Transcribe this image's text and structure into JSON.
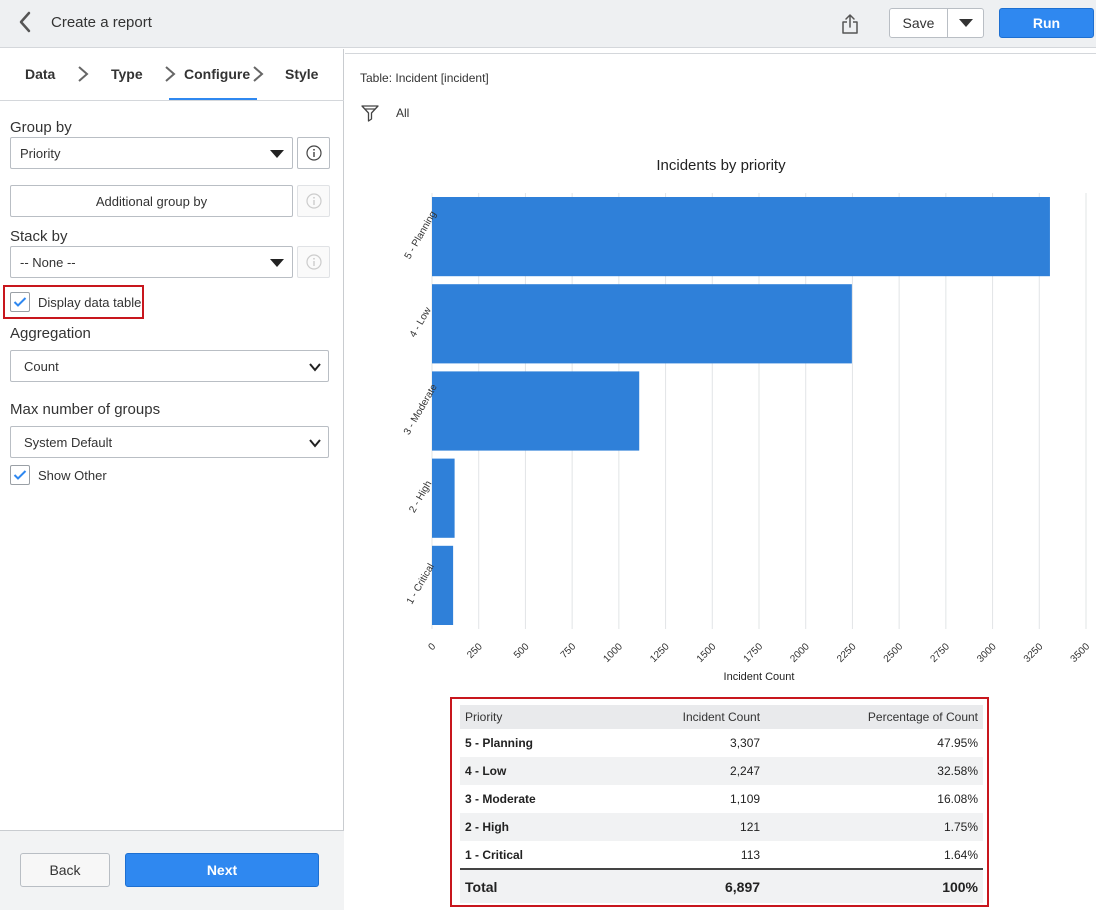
{
  "header": {
    "title": "Create a report",
    "save_label": "Save",
    "run_label": "Run"
  },
  "steps": [
    {
      "label": "Data"
    },
    {
      "label": "Type"
    },
    {
      "label": "Configure"
    },
    {
      "label": "Style"
    }
  ],
  "config": {
    "group_by_label": "Group by",
    "group_by_value": "Priority",
    "additional_group_by_label": "Additional group by",
    "stack_by_label": "Stack by",
    "stack_by_value": "-- None --",
    "display_data_table_label": "Display data table",
    "display_data_table_checked": true,
    "aggregation_label": "Aggregation",
    "aggregation_value": "Count",
    "max_groups_label": "Max number of groups",
    "max_groups_value": "System Default",
    "show_other_label": "Show Other",
    "show_other_checked": true
  },
  "footer": {
    "back_label": "Back",
    "next_label": "Next"
  },
  "report": {
    "table_label": "Table: Incident [incident]",
    "filter_label": "All"
  },
  "colors": {
    "bar": "#2f80d9",
    "accent": "#2f88f0",
    "highlight": "#c8161d"
  },
  "chart_data": {
    "type": "bar",
    "orientation": "horizontal",
    "title": "Incidents by priority",
    "xlabel": "Incident Count",
    "ylabel": "",
    "categories": [
      "5 - Planning",
      "4 - Low",
      "3 - Moderate",
      "2 - High",
      "1 - Critical"
    ],
    "values": [
      3307,
      2247,
      1109,
      121,
      113
    ],
    "xlim": [
      0,
      3500
    ],
    "xticks": [
      "0",
      "250",
      "500",
      "750",
      "1000",
      "1250",
      "1500",
      "1750",
      "2000",
      "2250",
      "2500",
      "2750",
      "3000",
      "3250",
      "3500"
    ],
    "grid": true
  },
  "data_table": {
    "headers": [
      "Priority",
      "Incident Count",
      "Percentage of Count"
    ],
    "rows": [
      {
        "priority": "5 - Planning",
        "count": "3,307",
        "pct": "47.95%"
      },
      {
        "priority": "4 - Low",
        "count": "2,247",
        "pct": "32.58%"
      },
      {
        "priority": "3 - Moderate",
        "count": "1,109",
        "pct": "16.08%"
      },
      {
        "priority": "2 - High",
        "count": "121",
        "pct": "1.75%"
      },
      {
        "priority": "1 - Critical",
        "count": "113",
        "pct": "1.64%"
      }
    ],
    "total": {
      "label": "Total",
      "count": "6,897",
      "pct": "100%"
    }
  }
}
